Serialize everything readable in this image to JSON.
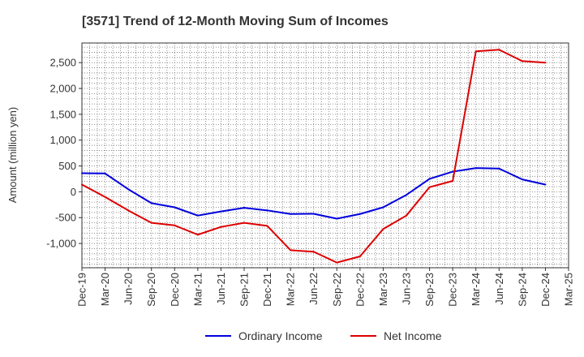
{
  "chart_data": {
    "type": "line",
    "title": "[3571]  Trend of 12-Month Moving Sum of Incomes",
    "ylabel": "Amount (million yen)",
    "xlabel": "",
    "x": [
      "Dec-19",
      "Mar-20",
      "Jun-20",
      "Sep-20",
      "Dec-20",
      "Mar-21",
      "Jun-21",
      "Sep-21",
      "Dec-21",
      "Mar-22",
      "Jun-22",
      "Sep-22",
      "Dec-22",
      "Mar-23",
      "Jun-23",
      "Sep-23",
      "Dec-23",
      "Mar-24",
      "Jun-24",
      "Sep-24",
      "Dec-24",
      "Mar-25"
    ],
    "ylim": [
      -1470,
      2880
    ],
    "yticks": [
      2500,
      2000,
      1500,
      1000,
      500,
      0,
      -500,
      -1000
    ],
    "ytick_labels": [
      "2,500",
      "2,000",
      "1,500",
      "1,000",
      "500",
      "0",
      "-500",
      "-1,000"
    ],
    "grid": true,
    "legend_position": "bottom",
    "series": [
      {
        "name": "Ordinary Income",
        "color": "#0000dd",
        "values": [
          360,
          355,
          50,
          -220,
          -300,
          -460,
          -380,
          -310,
          -360,
          -430,
          -425,
          -520,
          -430,
          -300,
          -60,
          250,
          390,
          460,
          450,
          240,
          140,
          null
        ]
      },
      {
        "name": "Net Income",
        "color": "#dd0000",
        "values": [
          140,
          -100,
          -360,
          -600,
          -650,
          -830,
          -680,
          -600,
          -660,
          -1130,
          -1160,
          -1370,
          -1250,
          -720,
          -460,
          90,
          210,
          2720,
          2750,
          2530,
          2500,
          null
        ]
      }
    ]
  }
}
